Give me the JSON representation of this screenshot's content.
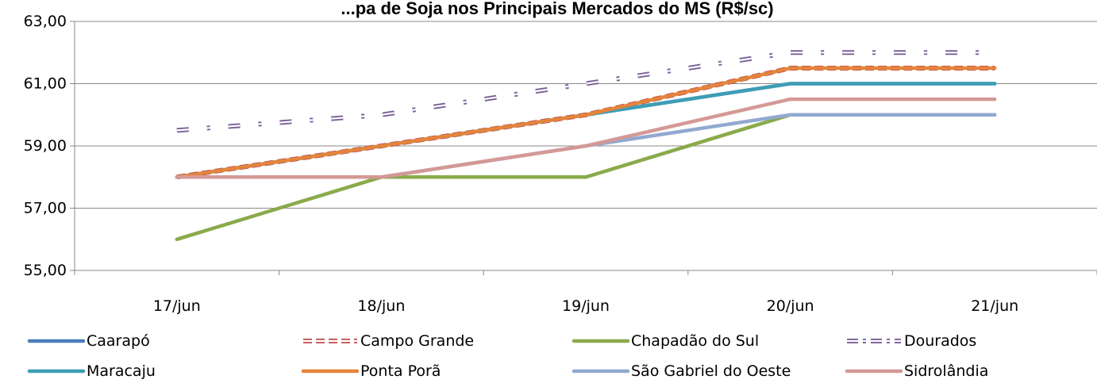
{
  "chart_data": {
    "type": "line",
    "title": "...pa de Soja nos Principais Mercados do MS (R$/sc)",
    "categories": [
      "17/jun",
      "18/jun",
      "19/jun",
      "20/jun",
      "21/jun"
    ],
    "ylim": [
      55,
      63
    ],
    "yticks": [
      "55,00",
      "57,00",
      "59,00",
      "61,00",
      "63,00"
    ],
    "ytick_values": [
      55,
      57,
      59,
      61,
      63
    ],
    "grid": true,
    "legend_position": "bottom",
    "series": [
      {
        "name": "Caarapó",
        "values": [
          58,
          59,
          60,
          61,
          61
        ],
        "color": "#4a7ebb",
        "style": "solid"
      },
      {
        "name": "Campo Grande",
        "values": [
          58,
          59,
          60,
          61.5,
          61.5
        ],
        "color": "#be4b48",
        "style": "double-dash"
      },
      {
        "name": "Chapadão do Sul",
        "values": [
          56,
          58,
          58,
          60,
          60
        ],
        "color": "#8aaa4b",
        "style": "solid"
      },
      {
        "name": "Dourados",
        "values": [
          59.5,
          60,
          61,
          62,
          62
        ],
        "color": "#7a5f9a",
        "style": "double-dashdot"
      },
      {
        "name": "Maracaju",
        "values": [
          58,
          59,
          60,
          61,
          61
        ],
        "color": "#3e9eb5",
        "style": "solid"
      },
      {
        "name": "Ponta Porã",
        "values": [
          58,
          59,
          60,
          61.5,
          61.5
        ],
        "color": "#e4843c",
        "style": "solid"
      },
      {
        "name": "São Gabriel do Oeste",
        "values": [
          58,
          58,
          59,
          60,
          60
        ],
        "color": "#91a9d0",
        "style": "solid"
      },
      {
        "name": "Sidrolândia",
        "values": [
          58,
          58,
          59,
          60.5,
          60.5
        ],
        "color": "#d49996",
        "style": "solid"
      }
    ]
  }
}
